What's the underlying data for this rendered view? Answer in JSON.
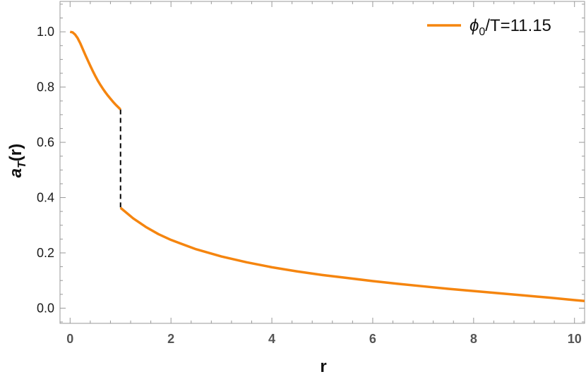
{
  "chart_data": {
    "type": "line",
    "xlabel": "r",
    "ylabel_main": "a",
    "ylabel_sub": "T",
    "ylabel_tail": "(r)",
    "xlim": [
      -0.2,
      10.2
    ],
    "ylim": [
      -0.055,
      1.11
    ],
    "x_ticks": [
      0,
      2,
      4,
      6,
      8,
      10
    ],
    "x_tick_labels": [
      "0",
      "2",
      "4",
      "6",
      "8",
      "10"
    ],
    "y_ticks": [
      0.0,
      0.2,
      0.4,
      0.6,
      0.8,
      1.0
    ],
    "y_tick_labels": [
      "0.0",
      "0.2",
      "0.4",
      "0.6",
      "0.8",
      "1.0"
    ],
    "x_minor_step": 0.4,
    "y_minor_step": 0.05,
    "grid": false,
    "legend_placement": "top-right",
    "series": [
      {
        "name": "ϕ0/T=11.15",
        "color": "#f5850f",
        "segments": [
          {
            "x": [
              0.0,
              0.05,
              0.1,
              0.15,
              0.2,
              0.25,
              0.3,
              0.35,
              0.4,
              0.45,
              0.5,
              0.55,
              0.6,
              0.65,
              0.7,
              0.75,
              0.8,
              0.85,
              0.9,
              0.95,
              1.0
            ],
            "y": [
              1.0,
              0.998,
              0.99,
              0.977,
              0.959,
              0.938,
              0.917,
              0.897,
              0.877,
              0.858,
              0.84,
              0.823,
              0.808,
              0.794,
              0.781,
              0.769,
              0.758,
              0.747,
              0.737,
              0.728,
              0.719
            ]
          },
          {
            "x": [
              1.0,
              1.25,
              1.5,
              1.75,
              2.0,
              2.5,
              3.0,
              3.5,
              4.0,
              4.5,
              5.0,
              5.5,
              6.0,
              6.5,
              7.0,
              7.5,
              8.0,
              8.5,
              9.0,
              9.5,
              10.0,
              10.2
            ],
            "y": [
              0.363,
              0.325,
              0.294,
              0.268,
              0.247,
              0.213,
              0.187,
              0.166,
              0.148,
              0.133,
              0.12,
              0.109,
              0.098,
              0.088,
              0.079,
              0.07,
              0.062,
              0.054,
              0.046,
              0.038,
              0.029,
              0.026
            ]
          }
        ]
      }
    ],
    "discontinuity": {
      "x": 1.0,
      "y_top": 0.719,
      "y_bottom": 0.363,
      "color": "#000000",
      "style": "dashed"
    },
    "legend": {
      "label_main": "ϕ",
      "label_sub": "0",
      "label_tail": "/T=11.15"
    }
  }
}
